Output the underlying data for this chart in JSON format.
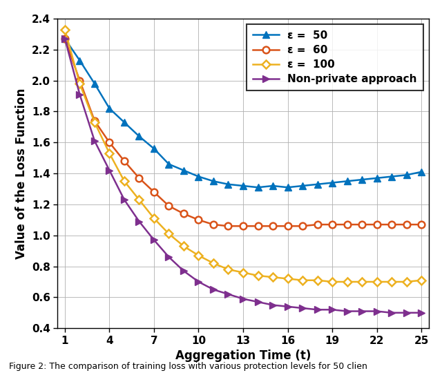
{
  "x": [
    1,
    2,
    3,
    4,
    5,
    6,
    7,
    8,
    9,
    10,
    11,
    12,
    13,
    14,
    15,
    16,
    17,
    18,
    19,
    20,
    21,
    22,
    23,
    24,
    25
  ],
  "eps50": [
    2.27,
    2.13,
    1.98,
    1.82,
    1.73,
    1.64,
    1.56,
    1.46,
    1.42,
    1.38,
    1.35,
    1.33,
    1.32,
    1.31,
    1.32,
    1.31,
    1.32,
    1.33,
    1.34,
    1.35,
    1.36,
    1.37,
    1.38,
    1.39,
    1.41
  ],
  "eps60": [
    2.27,
    2.0,
    1.74,
    1.6,
    1.48,
    1.37,
    1.28,
    1.19,
    1.14,
    1.1,
    1.07,
    1.06,
    1.06,
    1.06,
    1.06,
    1.06,
    1.06,
    1.07,
    1.07,
    1.07,
    1.07,
    1.07,
    1.07,
    1.07,
    1.07
  ],
  "eps100": [
    2.33,
    1.98,
    1.73,
    1.53,
    1.35,
    1.23,
    1.11,
    1.01,
    0.93,
    0.87,
    0.82,
    0.78,
    0.76,
    0.74,
    0.73,
    0.72,
    0.71,
    0.71,
    0.7,
    0.7,
    0.7,
    0.7,
    0.7,
    0.7,
    0.71
  ],
  "nonprivate": [
    2.27,
    1.91,
    1.61,
    1.42,
    1.23,
    1.09,
    0.97,
    0.86,
    0.77,
    0.7,
    0.65,
    0.62,
    0.59,
    0.57,
    0.55,
    0.54,
    0.53,
    0.52,
    0.52,
    0.51,
    0.51,
    0.51,
    0.5,
    0.5,
    0.5
  ],
  "color_eps50": "#0072BD",
  "color_eps60": "#D95319",
  "color_eps100": "#EDB120",
  "color_nonprivate": "#7E2F8E",
  "xlabel": "Aggregation Time (t)",
  "ylabel": "Value of the Loss Function",
  "xlim": [
    0.5,
    25.5
  ],
  "ylim": [
    0.4,
    2.4
  ],
  "xticks": [
    1,
    4,
    7,
    10,
    13,
    16,
    19,
    22,
    25
  ],
  "yticks": [
    0.4,
    0.6,
    0.8,
    1.0,
    1.2,
    1.4,
    1.6,
    1.8,
    2.0,
    2.2,
    2.4
  ],
  "caption": "Figure 2: The comparison of training loss with various protection levels for 50 clien",
  "legend_labels": [
    "ε =  50",
    "ε =  60",
    "ε =  100",
    "Non-private approach"
  ],
  "linewidth": 1.8,
  "markersize": 7
}
